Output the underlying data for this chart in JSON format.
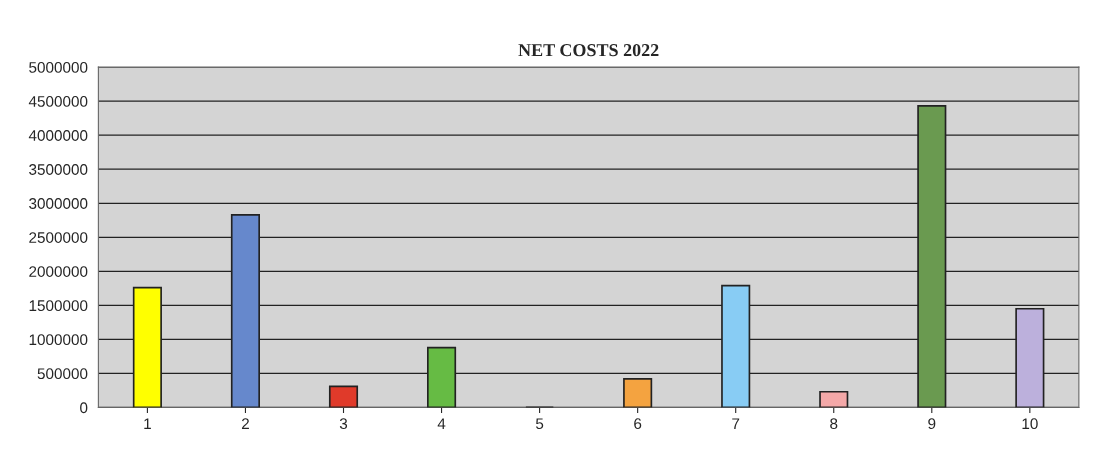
{
  "chart_data": {
    "type": "bar",
    "title": "NET COSTS 2022",
    "categories": [
      "1",
      "2",
      "3",
      "4",
      "5",
      "6",
      "7",
      "8",
      "9",
      "10"
    ],
    "values": [
      1760000,
      2830000,
      310000,
      880000,
      0,
      420000,
      1790000,
      230000,
      4430000,
      1450000
    ],
    "colors": [
      "#ffff00",
      "#6688cc",
      "#e03a2a",
      "#66bb44",
      "#222222",
      "#f4a340",
      "#88ccf4",
      "#f4a8a8",
      "#6a9a50",
      "#bcb0dc"
    ],
    "ylim": [
      0,
      5000000
    ],
    "yticks": [
      0,
      500000,
      1000000,
      1500000,
      2000000,
      2500000,
      3000000,
      3500000,
      4000000,
      4500000,
      5000000
    ],
    "grid": "y"
  }
}
